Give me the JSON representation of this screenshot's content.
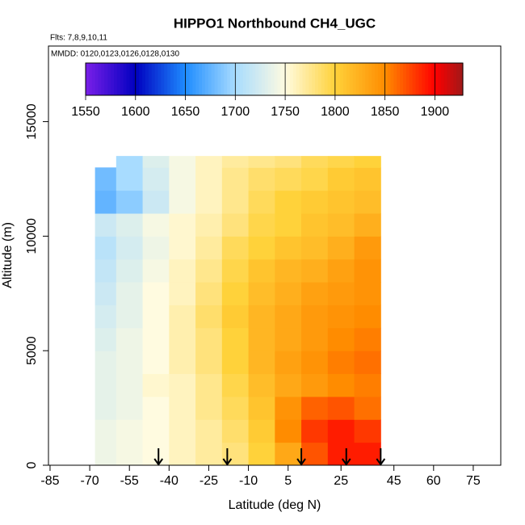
{
  "chart_data": {
    "type": "heatmap",
    "title": "HIPPO1 Northbound CH4_UGC",
    "subtitle": "Flts: 7,8,9,10,11",
    "annotation": "MMDD: 0120,0123,0126,0128,0130",
    "x_label": "Latitude (deg N)",
    "y_label": "Altitude (m)",
    "xlim": [
      -85.6,
      85.4
    ],
    "xticks": [
      -85,
      -70,
      -55,
      -40,
      -25,
      -10,
      5,
      25,
      45,
      60,
      75
    ],
    "ylim": [
      0,
      18300
    ],
    "yticks": [
      0,
      5000,
      10000,
      15000
    ],
    "clim": [
      1550,
      1928
    ],
    "cticks": [
      1550,
      1600,
      1650,
      1700,
      1750,
      1800,
      1850,
      1900
    ],
    "colorscale": [
      [
        1550,
        "#7a1fe8"
      ],
      [
        1600,
        "#0000c0"
      ],
      [
        1650,
        "#1e8cff"
      ],
      [
        1700,
        "#a8dcff"
      ],
      [
        1750,
        "#fffbe0"
      ],
      [
        1800,
        "#ffd23a"
      ],
      [
        1850,
        "#ff8c00"
      ],
      [
        1900,
        "#ff0000"
      ],
      [
        1928,
        "#a01818"
      ]
    ],
    "x_edges": [
      -68,
      -60,
      -50,
      -40,
      -30,
      -20,
      -10,
      0,
      10,
      20,
      30,
      40
    ],
    "y_edges": [
      0,
      1000,
      2000,
      3000,
      4000,
      5000,
      6000,
      7000,
      8000,
      9000,
      10000,
      11000,
      12000,
      13000,
      13500
    ],
    "z": [
      [
        1740,
        1745,
        1750,
        1760,
        1770,
        1780,
        1800,
        1830,
        1870,
        1890,
        1890
      ],
      [
        1740,
        1745,
        1750,
        1760,
        1770,
        1785,
        1805,
        1850,
        1880,
        1890,
        1880
      ],
      [
        1735,
        1740,
        1750,
        1760,
        1775,
        1790,
        1810,
        1845,
        1865,
        1870,
        1860
      ],
      [
        1735,
        1740,
        1755,
        1760,
        1775,
        1795,
        1815,
        1830,
        1840,
        1850,
        1855
      ],
      [
        1735,
        1740,
        1750,
        1765,
        1780,
        1800,
        1820,
        1835,
        1845,
        1855,
        1860
      ],
      [
        1730,
        1740,
        1750,
        1765,
        1780,
        1800,
        1820,
        1830,
        1840,
        1850,
        1855
      ],
      [
        1725,
        1735,
        1750,
        1765,
        1785,
        1805,
        1820,
        1830,
        1840,
        1845,
        1850
      ],
      [
        1720,
        1735,
        1750,
        1760,
        1780,
        1800,
        1815,
        1825,
        1835,
        1840,
        1845
      ],
      [
        1715,
        1730,
        1745,
        1760,
        1775,
        1795,
        1810,
        1820,
        1825,
        1835,
        1845
      ],
      [
        1710,
        1725,
        1740,
        1755,
        1770,
        1790,
        1800,
        1810,
        1815,
        1825,
        1840
      ],
      [
        1720,
        1730,
        1745,
        1755,
        1765,
        1780,
        1795,
        1800,
        1810,
        1815,
        1825
      ],
      [
        1675,
        1690,
        1720,
        1745,
        1760,
        1775,
        1790,
        1800,
        1805,
        1810,
        1815
      ],
      [
        1680,
        1700,
        1725,
        1745,
        1760,
        1775,
        1785,
        1790,
        1795,
        1805,
        1810
      ],
      [
        null,
        1700,
        1730,
        1745,
        1760,
        1770,
        1775,
        1780,
        1790,
        1795,
        1800
      ]
    ],
    "arrows": [
      -44,
      -18,
      10,
      27,
      40
    ]
  }
}
